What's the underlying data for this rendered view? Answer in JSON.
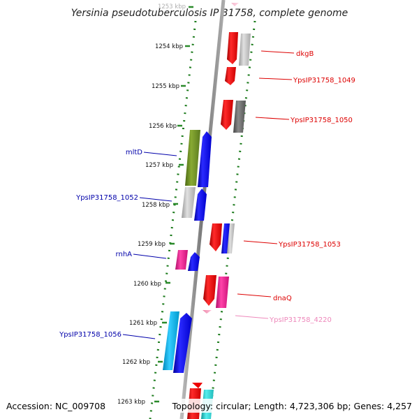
{
  "header": {
    "title": "Yersinia pseudotuberculosis IP 31758, complete genome"
  },
  "footer": {
    "accession": "Accession: NC_009708",
    "topology": "Topology: circular; Length: 4,723,306 bp; Genes: 4,257"
  },
  "ruler": {
    "ticks": [
      "1253 kbp",
      "1254 kbp",
      "1255 kbp",
      "1256 kbp",
      "1257 kbp",
      "1258 kbp",
      "1259 kbp",
      "1260 kbp",
      "1261 kbp",
      "1262 kbp",
      "1263 kbp"
    ]
  },
  "genes": {
    "forward_labels": [
      {
        "text": "dkgB",
        "color": "#dd0000"
      },
      {
        "text": "YpsIP31758_1049",
        "color": "#dd0000"
      },
      {
        "text": "YpsIP31758_1050",
        "color": "#dd0000"
      },
      {
        "text": "YpsIP31758_1053",
        "color": "#dd0000"
      },
      {
        "text": "dnaQ",
        "color": "#dd0000"
      },
      {
        "text": "YpsIP31758_4220",
        "color": "#ee88bb"
      }
    ],
    "reverse_labels": [
      {
        "text": "mltD",
        "color": "#0000aa"
      },
      {
        "text": "YpsIP31758_1052",
        "color": "#0000aa"
      },
      {
        "text": "rnhA",
        "color": "#0000aa"
      },
      {
        "text": "YpsIP31758_1056",
        "color": "#0000aa"
      }
    ]
  },
  "colors": {
    "forward": "#ee0000",
    "reverse": "#0000ee",
    "green": "#6b8e23",
    "gray": "#b4b4b4",
    "darkgray": "#666666",
    "pink": "#ee2299",
    "lightpink": "#ff88bb",
    "cyan": "#00bbee",
    "teal": "#22cccc",
    "backbone": "#8a8a8a",
    "ruler": "#228822"
  }
}
